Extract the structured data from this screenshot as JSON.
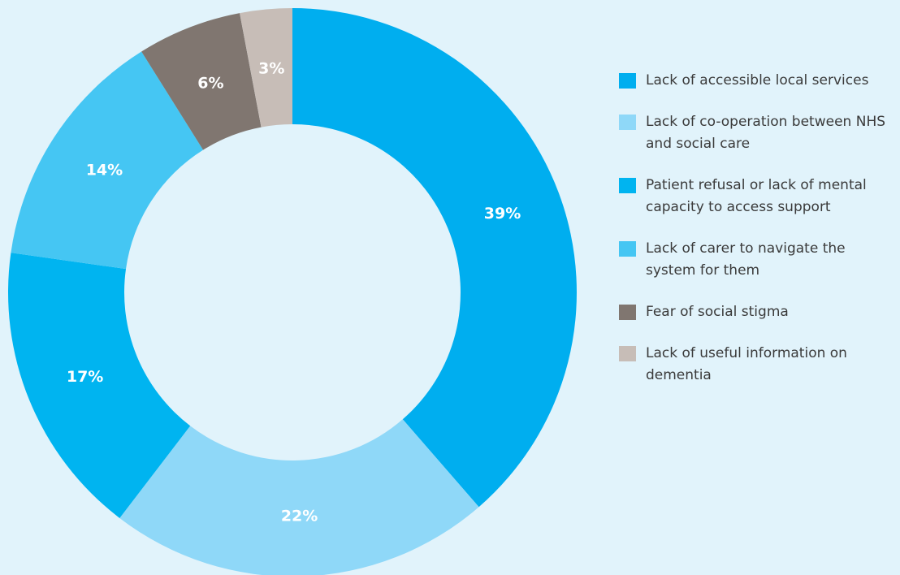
{
  "chart_data": {
    "type": "donut",
    "categories": [
      "Lack of accessible local services",
      "Lack of co-operation between NHS and social care",
      "Patient refusal or lack of mental capacity to access support",
      "Lack of carer to navigate the system for them",
      "Fear of social stigma",
      "Lack of useful information on dementia"
    ],
    "values": [
      39,
      22,
      17,
      14,
      6,
      3
    ],
    "value_labels": [
      "39%",
      "22%",
      "17%",
      "14%",
      "6%",
      "3%"
    ],
    "colors": [
      "#00aeef",
      "#8fd8f8",
      "#00b4f0",
      "#45c6f3",
      "#807670",
      "#c7bdb7"
    ]
  }
}
